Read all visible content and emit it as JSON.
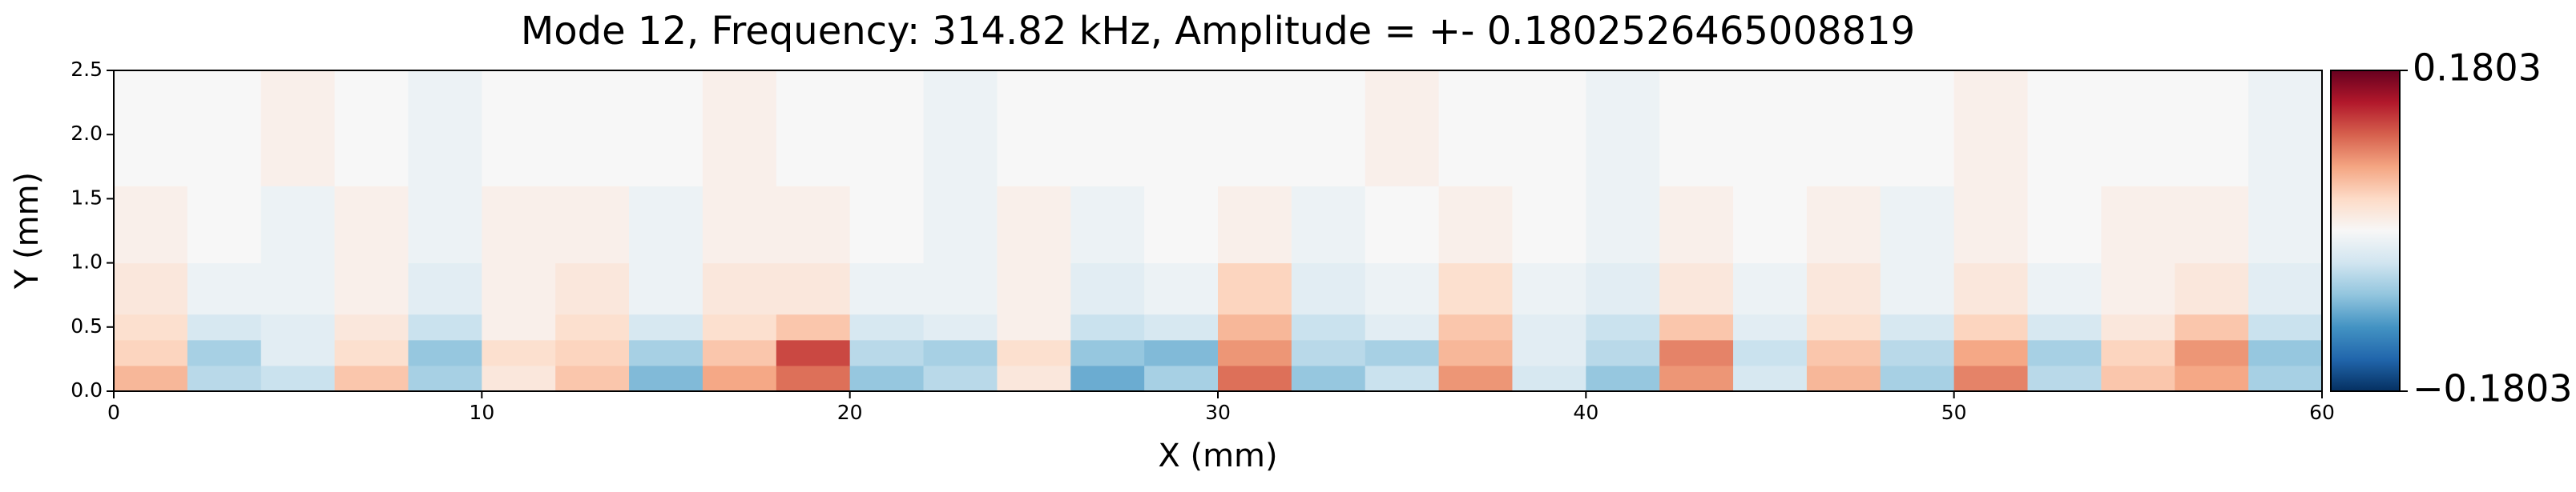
{
  "chart_data": {
    "type": "heatmap",
    "title": "Mode 12, Frequency: 314.82 kHz, Amplitude = +- 0.1802526465008819",
    "x_label": "X (mm)",
    "y_label": "Y (mm)",
    "xlim": [
      0,
      60
    ],
    "ylim": [
      0,
      2.5
    ],
    "xticks": [
      0,
      10,
      20,
      30,
      40,
      50,
      60
    ],
    "yticks": [
      {
        "value": 0,
        "label": "0.0"
      },
      0.5,
      {
        "value": 1,
        "label": "1.0"
      },
      1.5,
      {
        "value": 2,
        "label": "2.0"
      },
      2.5
    ],
    "x_edges": [
      0,
      2,
      4,
      6,
      8,
      10,
      12,
      14,
      16,
      18,
      20,
      22,
      24,
      26,
      28,
      30,
      32,
      34,
      36,
      38,
      40,
      42,
      44,
      46,
      48,
      50,
      52,
      54,
      56,
      58,
      60
    ],
    "y_edges": [
      0,
      0.2,
      0.4,
      0.6,
      1.0,
      1.6,
      2.5
    ],
    "z": [
      [
        0.06,
        -0.05,
        -0.04,
        0.05,
        -0.06,
        0.02,
        0.05,
        -0.08,
        0.07,
        0.1,
        -0.07,
        -0.05,
        0.02,
        -0.09,
        -0.06,
        0.1,
        -0.07,
        -0.04,
        0.08,
        -0.03,
        -0.07,
        0.08,
        -0.03,
        0.06,
        -0.06,
        0.09,
        -0.05,
        0.05,
        0.07,
        -0.06
      ],
      [
        0.04,
        -0.06,
        -0.02,
        0.03,
        -0.07,
        0.03,
        0.04,
        -0.06,
        0.05,
        0.12,
        -0.05,
        -0.06,
        0.03,
        -0.07,
        -0.08,
        0.08,
        -0.05,
        -0.06,
        0.06,
        -0.02,
        -0.05,
        0.09,
        -0.04,
        0.05,
        -0.05,
        0.07,
        -0.06,
        0.04,
        0.08,
        -0.07
      ],
      [
        0.03,
        -0.03,
        -0.02,
        0.02,
        -0.04,
        0.01,
        0.03,
        -0.03,
        0.03,
        0.05,
        -0.03,
        -0.02,
        0.01,
        -0.04,
        -0.03,
        0.06,
        -0.04,
        -0.02,
        0.05,
        -0.02,
        -0.04,
        0.05,
        -0.02,
        0.03,
        -0.03,
        0.04,
        -0.03,
        0.02,
        0.05,
        -0.04
      ],
      [
        0.02,
        -0.01,
        -0.01,
        0.01,
        -0.02,
        0.01,
        0.02,
        -0.01,
        0.02,
        0.02,
        -0.01,
        -0.01,
        0.01,
        -0.02,
        -0.01,
        0.04,
        -0.02,
        -0.01,
        0.03,
        -0.01,
        -0.02,
        0.02,
        -0.01,
        0.02,
        -0.01,
        0.02,
        -0.01,
        0.01,
        0.02,
        -0.02
      ],
      [
        0.01,
        0,
        -0.01,
        0.01,
        -0.01,
        0.01,
        0.01,
        -0.01,
        0.01,
        0.01,
        0,
        -0.01,
        0.01,
        -0.01,
        0,
        0.01,
        -0.01,
        0,
        0.01,
        0,
        -0.01,
        0.01,
        0,
        0.01,
        -0.01,
        0.01,
        0,
        0.01,
        0.01,
        -0.01
      ],
      [
        0,
        0,
        0.01,
        0,
        -0.01,
        0,
        0,
        0,
        0.01,
        0,
        0,
        -0.01,
        0,
        0,
        0,
        0,
        0,
        0.01,
        0,
        0,
        -0.01,
        0,
        0,
        0,
        0,
        0.01,
        0,
        0,
        0,
        -0.01
      ]
    ],
    "zlim": [
      -0.1803,
      0.1803
    ],
    "zticks": [
      {
        "value": -0.1803,
        "label": "−0.1803"
      },
      0.1803
    ],
    "colormap": [
      "#053061",
      "#2166ac",
      "#4393c3",
      "#92c5de",
      "#d1e5f0",
      "#f7f7f7",
      "#fddbc7",
      "#f4a582",
      "#d6604d",
      "#b2182b",
      "#67001f"
    ]
  }
}
